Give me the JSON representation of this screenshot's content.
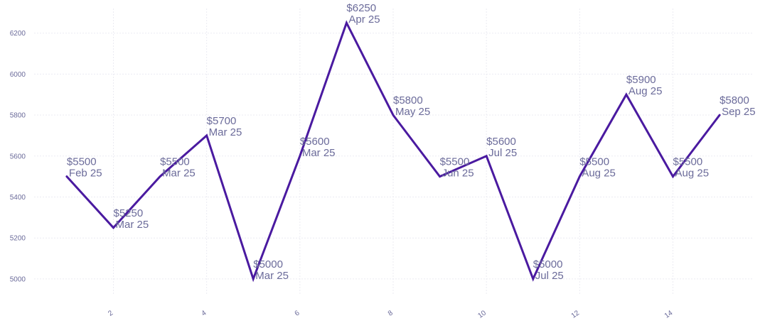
{
  "chart_data": {
    "type": "line",
    "title": "",
    "xlabel": "",
    "ylabel": "",
    "x": [
      1,
      2,
      3,
      4,
      5,
      6,
      7,
      8,
      9,
      10,
      11,
      12,
      13,
      14,
      15
    ],
    "series": [
      {
        "values": [
          5500,
          5250,
          5500,
          5700,
          5000,
          5600,
          6250,
          5800,
          5500,
          5600,
          5000,
          5500,
          5900,
          5500,
          5800
        ],
        "color": "#4a1aa0"
      }
    ],
    "data_labels": [
      {
        "value": "$5500",
        "date": "Feb 25"
      },
      {
        "value": "$5250",
        "date": "Mar 25"
      },
      {
        "value": "$5500",
        "date": "Mar 25"
      },
      {
        "value": "$5700",
        "date": "Mar 25"
      },
      {
        "value": "$5000",
        "date": "Mar 25"
      },
      {
        "value": "$5600",
        "date": "Mar 25"
      },
      {
        "value": "$6250",
        "date": "Apr 25"
      },
      {
        "value": "$5800",
        "date": "May 25"
      },
      {
        "value": "$5500",
        "date": "Jun 25"
      },
      {
        "value": "$5600",
        "date": "Jul 25"
      },
      {
        "value": "$5000",
        "date": "Jul 25"
      },
      {
        "value": "$5500",
        "date": "Aug 25"
      },
      {
        "value": "$5900",
        "date": "Aug 25"
      },
      {
        "value": "$5500",
        "date": "Aug 25"
      },
      {
        "value": "$5800",
        "date": "Sep 25"
      }
    ],
    "xticks": [
      2,
      4,
      6,
      8,
      10,
      12,
      14
    ],
    "yticks": [
      5000,
      5200,
      5400,
      5600,
      5800,
      6000,
      6200
    ],
    "xlim": [
      0.3,
      15.7
    ],
    "ylim": [
      4920,
      6320
    ],
    "grid": true,
    "legend": "none"
  }
}
